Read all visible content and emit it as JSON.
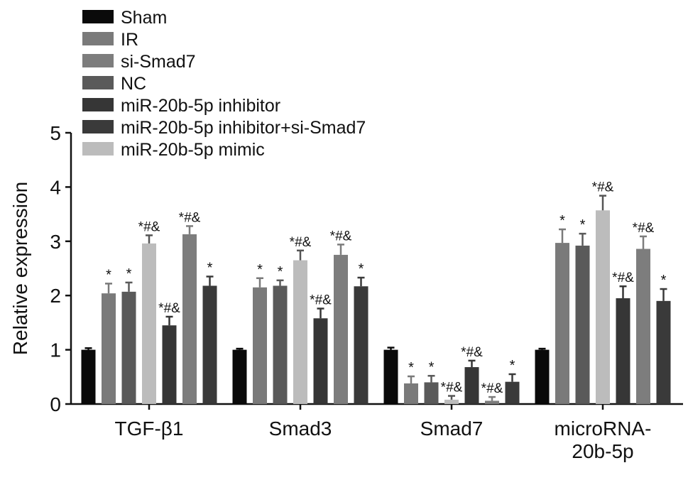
{
  "chart_data": {
    "type": "bar",
    "title": "",
    "xlabel": "",
    "ylabel": "Relative expression",
    "ylim": [
      0,
      5
    ],
    "yticks": [
      "0",
      "1",
      "2",
      "3",
      "4",
      "5"
    ],
    "grid": false,
    "legend_placement": "top-left",
    "categories": [
      {
        "lines": [
          "TGF-β1"
        ]
      },
      {
        "lines": [
          "Smad3"
        ]
      },
      {
        "lines": [
          "Smad7"
        ]
      },
      {
        "lines": [
          "microRNA-",
          "20b-5p"
        ]
      }
    ],
    "legend": [
      {
        "name": "Sham",
        "color": "#0a0a0a"
      },
      {
        "name": "IR",
        "color": "#7a7a7a"
      },
      {
        "name": "si-Smad7",
        "color": "#7d7d7d"
      },
      {
        "name": "NC",
        "color": "#5a5a5a"
      },
      {
        "name": "miR-20b-5p inhibitor",
        "color": "#363636"
      },
      {
        "name": "miR-20b-5p inhibitor+si-Smad7",
        "color": "#3a3a3a"
      },
      {
        "name": "miR-20b-5p mimic",
        "color": "#bcbcbc"
      }
    ],
    "series": [
      {
        "name": "Sham",
        "color": "#0a0a0a",
        "values": [
          1.0,
          1.0,
          1.0,
          1.0
        ],
        "errors": [
          0.03,
          0.02,
          0.04,
          0.02
        ],
        "labels": [
          "",
          "",
          "",
          ""
        ]
      },
      {
        "name": "IR",
        "color": "#7a7a7a",
        "values": [
          2.04,
          2.15,
          0.38,
          2.97
        ],
        "errors": [
          0.18,
          0.17,
          0.13,
          0.25
        ],
        "labels": [
          "*",
          "*",
          "*",
          "*"
        ]
      },
      {
        "name": "NC",
        "color": "#5a5a5a",
        "values": [
          2.07,
          2.18,
          0.4,
          2.92
        ],
        "errors": [
          0.17,
          0.1,
          0.12,
          0.22
        ],
        "labels": [
          "*",
          "*",
          "*",
          "*"
        ]
      },
      {
        "name": "miR-20b-5p mimic",
        "color": "#bcbcbc",
        "values": [
          2.96,
          2.65,
          0.08,
          3.57
        ],
        "errors": [
          0.15,
          0.18,
          0.07,
          0.27
        ],
        "labels": [
          "*#&",
          "*#&",
          "*#&",
          "*#&"
        ]
      },
      {
        "name": "miR-20b-5p inhibitor",
        "color": "#363636",
        "values": [
          1.45,
          1.58,
          0.68,
          1.95
        ],
        "errors": [
          0.16,
          0.18,
          0.12,
          0.22
        ],
        "labels": [
          "*#&",
          "*#&",
          "*#&",
          "*#&"
        ]
      },
      {
        "name": "si-Smad7",
        "color": "#7d7d7d",
        "values": [
          3.13,
          2.75,
          0.06,
          2.86
        ],
        "errors": [
          0.15,
          0.19,
          0.07,
          0.23
        ],
        "labels": [
          "*#&",
          "*#&",
          "*#&",
          "*#&"
        ]
      },
      {
        "name": "miR-20b-5p inhibitor+si-Smad7",
        "color": "#3a3a3a",
        "values": [
          2.18,
          2.17,
          0.41,
          1.9
        ],
        "errors": [
          0.17,
          0.16,
          0.14,
          0.22
        ],
        "labels": [
          "*",
          "*",
          "*",
          "*"
        ]
      }
    ]
  }
}
